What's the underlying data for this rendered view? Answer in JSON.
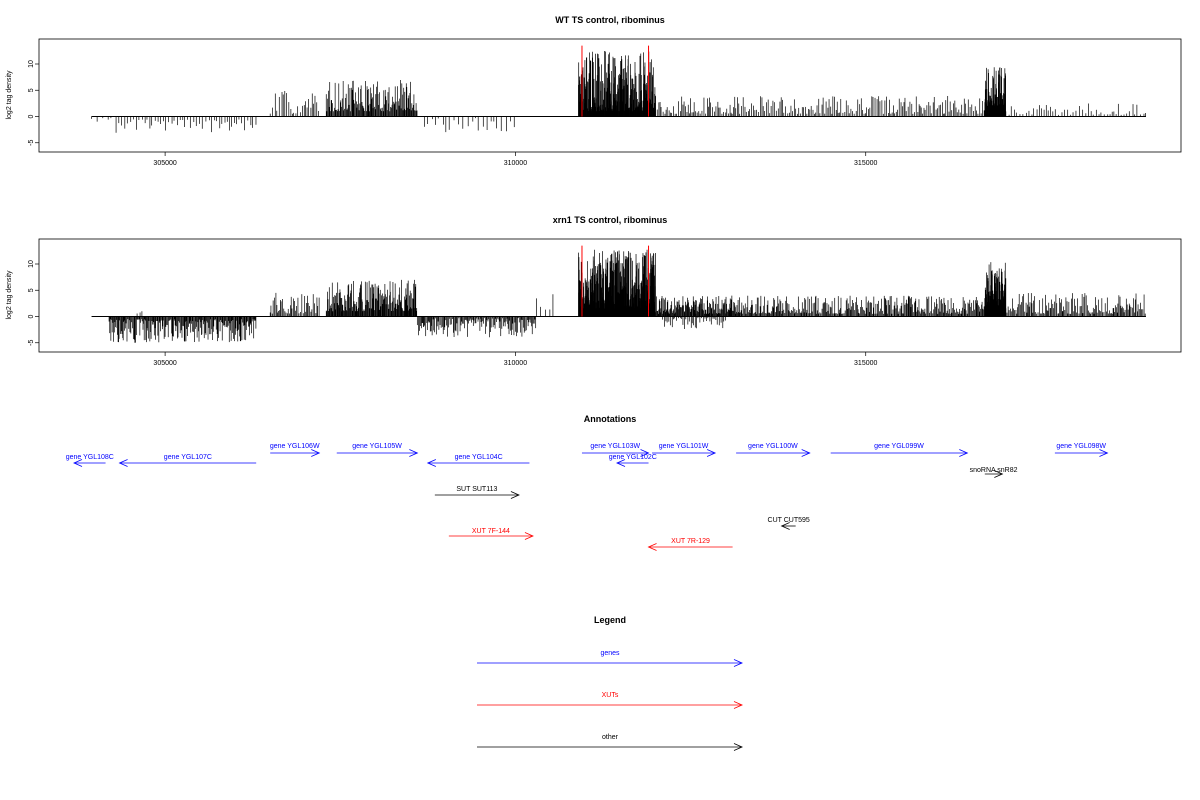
{
  "chart_data": {
    "type": "bar",
    "x_range": [
      303200,
      319500
    ],
    "x_ticks": [
      {
        "value": 305000,
        "label": "305000"
      },
      {
        "value": 310000,
        "label": "310000"
      },
      {
        "value": 315000,
        "label": "315000"
      }
    ],
    "y_ticks": [
      {
        "value": -5,
        "label": "-5"
      },
      {
        "value": 0,
        "label": "0"
      },
      {
        "value": 5,
        "label": "5"
      },
      {
        "value": 10,
        "label": "10"
      }
    ],
    "ylim": [
      -6,
      14
    ],
    "ylabel": "log2 tag density",
    "marker_color": "#ff0000",
    "marker_positions": [
      310950,
      311900
    ],
    "panels": [
      {
        "title": "WT TS control, ribominus",
        "seed": 7,
        "segments": [
          {
            "start": 303950,
            "end": 304300,
            "sign": -1,
            "min": 0.3,
            "max": 1.8,
            "step": 60
          },
          {
            "start": 304300,
            "end": 306300,
            "sign": -1,
            "min": 0.5,
            "max": 3.2,
            "step": 38
          },
          {
            "start": 306500,
            "end": 307200,
            "sign": 1,
            "min": 0.5,
            "max": 5.0,
            "step": 28
          },
          {
            "start": 307300,
            "end": 308600,
            "sign": 1,
            "min": 1.0,
            "max": 7.0,
            "step": 10
          },
          {
            "start": 308700,
            "end": 310000,
            "sign": -1,
            "min": 0.3,
            "max": 3.0,
            "step": 55
          },
          {
            "start": 310900,
            "end": 312000,
            "sign": 1,
            "min": 1.0,
            "max": 12.5,
            "step": 4
          },
          {
            "start": 312000,
            "end": 316700,
            "sign": 1,
            "min": 0.5,
            "max": 4.0,
            "step": 22
          },
          {
            "start": 316700,
            "end": 317000,
            "sign": 1,
            "min": 2.0,
            "max": 10.0,
            "step": 4
          },
          {
            "start": 317000,
            "end": 319000,
            "sign": 1,
            "min": 0.3,
            "max": 2.5,
            "step": 38
          }
        ]
      },
      {
        "title": "xrn1 TS control, ribominus",
        "seed": 13,
        "segments": [
          {
            "start": 304200,
            "end": 306300,
            "sign": -1,
            "min": 0.5,
            "max": 5.0,
            "step": 10
          },
          {
            "start": 304600,
            "end": 304700,
            "sign": 1,
            "min": 0.5,
            "max": 1.5,
            "step": 40
          },
          {
            "start": 306500,
            "end": 307200,
            "sign": 1,
            "min": 0.5,
            "max": 4.5,
            "step": 16
          },
          {
            "start": 307300,
            "end": 308600,
            "sign": 1,
            "min": 1.0,
            "max": 7.0,
            "step": 8
          },
          {
            "start": 308600,
            "end": 310300,
            "sign": -1,
            "min": 0.3,
            "max": 4.0,
            "step": 12
          },
          {
            "start": 310300,
            "end": 310600,
            "sign": 1,
            "min": 1.0,
            "max": 5.0,
            "step": 60
          },
          {
            "start": 310900,
            "end": 312000,
            "sign": 1,
            "min": 1.5,
            "max": 13.0,
            "step": 3
          },
          {
            "start": 312000,
            "end": 313200,
            "sign": 1,
            "min": 0.5,
            "max": 4.0,
            "step": 8
          },
          {
            "start": 312100,
            "end": 313000,
            "sign": -1,
            "min": 0.3,
            "max": 2.5,
            "step": 22
          },
          {
            "start": 313200,
            "end": 316700,
            "sign": 1,
            "min": 0.5,
            "max": 4.0,
            "step": 12
          },
          {
            "start": 316700,
            "end": 317000,
            "sign": 1,
            "min": 2.0,
            "max": 10.5,
            "step": 3
          },
          {
            "start": 317000,
            "end": 319000,
            "sign": 1,
            "min": 0.5,
            "max": 4.5,
            "step": 14
          }
        ]
      }
    ]
  },
  "annotations": {
    "title": "Annotations",
    "features": [
      {
        "label": "gene YGL108C",
        "start": 303700,
        "end": 304150,
        "strand": "-",
        "row": 1,
        "kind": "gene"
      },
      {
        "label": "gene YGL107C",
        "start": 304350,
        "end": 306300,
        "strand": "-",
        "row": 1,
        "kind": "gene"
      },
      {
        "label": "gene YGL106W",
        "start": 306500,
        "end": 307200,
        "strand": "+",
        "row": 0,
        "kind": "gene"
      },
      {
        "label": "gene YGL105W",
        "start": 307450,
        "end": 308600,
        "strand": "+",
        "row": 0,
        "kind": "gene"
      },
      {
        "label": "gene YGL104C",
        "start": 308750,
        "end": 310200,
        "strand": "-",
        "row": 1,
        "kind": "gene"
      },
      {
        "label": "gene YGL103W",
        "start": 310950,
        "end": 311900,
        "strand": "+",
        "row": 0,
        "kind": "gene"
      },
      {
        "label": "gene YGL102C",
        "start": 311450,
        "end": 311900,
        "strand": "-",
        "row": 1,
        "kind": "gene"
      },
      {
        "label": "gene YGL101W",
        "start": 311950,
        "end": 312850,
        "strand": "+",
        "row": 0,
        "kind": "gene"
      },
      {
        "label": "gene YGL100W",
        "start": 313150,
        "end": 314200,
        "strand": "+",
        "row": 0,
        "kind": "gene"
      },
      {
        "label": "gene YGL099W",
        "start": 314500,
        "end": 316450,
        "strand": "+",
        "row": 0,
        "kind": "gene"
      },
      {
        "label": "gene YGL098W",
        "start": 317700,
        "end": 318450,
        "strand": "+",
        "row": 0,
        "kind": "gene"
      },
      {
        "label": "snoRNA snR82",
        "start": 316700,
        "end": 316950,
        "strand": "+",
        "row": 2,
        "kind": "other"
      },
      {
        "label": "SUT SUT113",
        "start": 308850,
        "end": 310050,
        "strand": "+",
        "row": 3,
        "kind": "other"
      },
      {
        "label": "CUT CUT595",
        "start": 313800,
        "end": 314000,
        "strand": "-",
        "row": 4,
        "kind": "other"
      },
      {
        "label": "XUT 7F-144",
        "start": 309050,
        "end": 310250,
        "strand": "+",
        "row": 5,
        "kind": "xut"
      },
      {
        "label": "XUT 7R-129",
        "start": 311900,
        "end": 313100,
        "strand": "-",
        "row": 6,
        "kind": "xut"
      }
    ]
  },
  "legend": {
    "title": "Legend",
    "items": [
      {
        "label": "genes",
        "color": "#0000ff"
      },
      {
        "label": "XUTs",
        "color": "#ff0000"
      },
      {
        "label": "other",
        "color": "#000000"
      }
    ]
  },
  "colors": {
    "gene": "#0000ff",
    "xut": "#ff0000",
    "other": "#000000"
  }
}
